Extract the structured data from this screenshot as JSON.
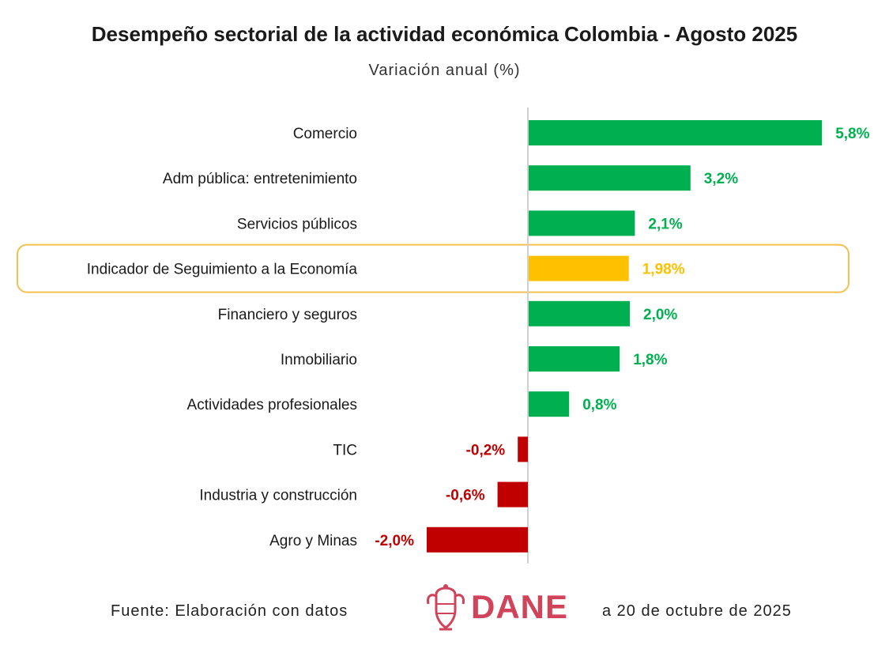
{
  "chart_data": {
    "type": "bar",
    "orientation": "horizontal",
    "title": "Desempeño sectorial de la actividad económica Colombia - Agosto 2025",
    "subtitle": "Variación anual (%)",
    "categories": [
      "Comercio",
      "Adm pública: entretenimiento",
      "Servicios públicos",
      "Indicador de Seguimiento a la Economía",
      "Financiero y seguros",
      "Inmobiliario",
      "Actividades profesionales",
      "TIC",
      "Industria y construcción",
      "Agro y Minas"
    ],
    "values": [
      5.8,
      3.2,
      2.1,
      1.98,
      2.0,
      1.8,
      0.8,
      -0.2,
      -0.6,
      -2.0
    ],
    "value_labels": [
      "5,8%",
      "3,2%",
      "2,1%",
      "1,98%",
      "2,0%",
      "1,8%",
      "0,8%",
      "-0,2%",
      "-0,6%",
      "-2,0%"
    ],
    "highlight_index": 3,
    "colors": {
      "positive": "#00b050",
      "negative": "#c00000",
      "highlight": "#ffc000",
      "highlight_border": "#f2c14e",
      "zero_line": "#d0d0d0"
    },
    "grid": false,
    "legend": "none"
  },
  "footer": {
    "source_prefix": "Fuente: Elaboración con datos",
    "logo_text": "DANE",
    "date_suffix": "a 20 de octubre de 2025",
    "logo_icon": "colombia-coat-of-arms-icon"
  }
}
